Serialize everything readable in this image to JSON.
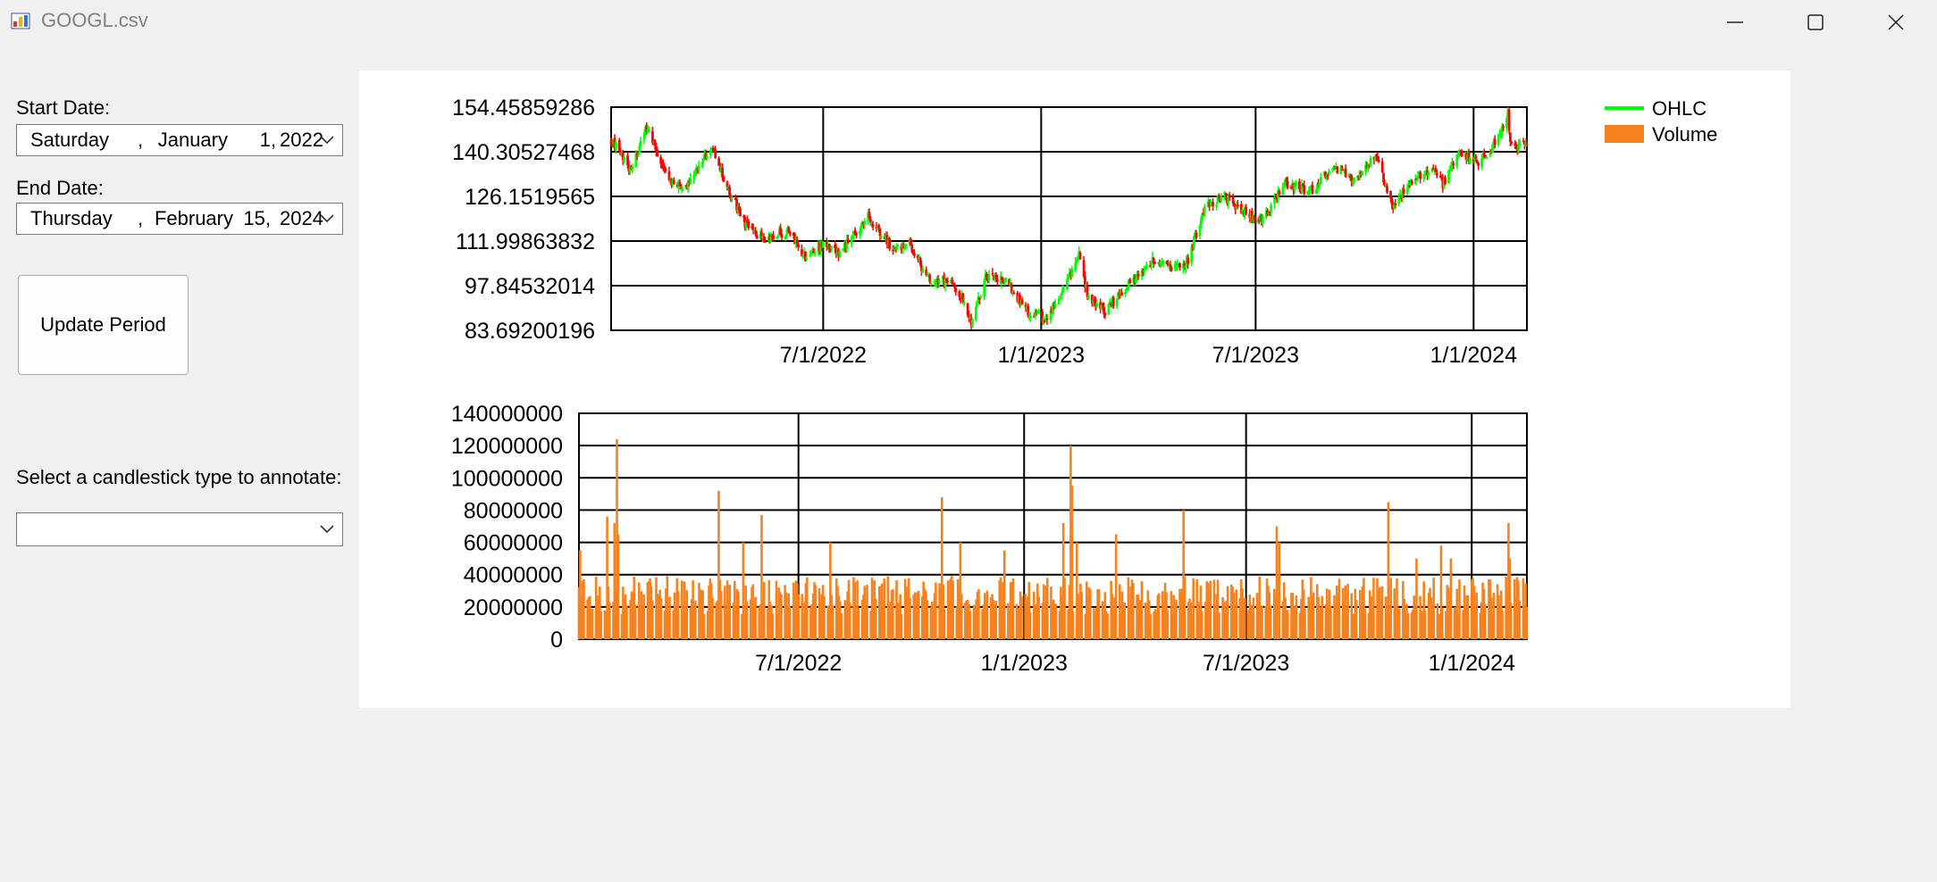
{
  "window": {
    "title": "GOOGL.csv",
    "icons": {
      "app": "chart-app-icon",
      "minimize": "minimize-icon",
      "maximize": "maximize-icon",
      "close": "close-icon"
    }
  },
  "controls": {
    "start_label": "Start Date:",
    "start_date": {
      "weekday": "Saturday",
      "sep": ",",
      "month": "January",
      "day": "1,",
      "year": "2022"
    },
    "end_label": "End Date:",
    "end_date": {
      "weekday": "Thursday",
      "sep": ",",
      "month": "February",
      "day": "15,",
      "year": "2024"
    },
    "update_button": "Update Period",
    "annotate_label": "Select a candlestick type to annotate:",
    "annotate_value": ""
  },
  "chart_data": [
    {
      "type": "candlestick",
      "series": [
        {
          "name": "OHLC",
          "up_color": "#00ff00",
          "down_color": "#ff0000"
        }
      ],
      "y_ticks": [
        "154.45859286",
        "140.30527468",
        "126.1519565",
        "111.99863832",
        "97.84532014",
        "83.69200196"
      ],
      "ylim": [
        83.69200196,
        154.45859286
      ],
      "x_ticks": [
        "7/1/2022",
        "1/1/2023",
        "7/1/2023",
        "1/1/2024"
      ],
      "xlim": [
        "2022-01-03",
        "2024-02-15"
      ],
      "grid": true,
      "anchors": [
        [
          "2022-01-03",
          144.5
        ],
        [
          "2022-01-20",
          134
        ],
        [
          "2022-02-02",
          148
        ],
        [
          "2022-02-22",
          131
        ],
        [
          "2022-03-07",
          129
        ],
        [
          "2022-03-29",
          142.5
        ],
        [
          "2022-04-11",
          129
        ],
        [
          "2022-04-27",
          117
        ],
        [
          "2022-05-11",
          113
        ],
        [
          "2022-06-01",
          115
        ],
        [
          "2022-06-16",
          107
        ],
        [
          "2022-06-30",
          111
        ],
        [
          "2022-07-15",
          108
        ],
        [
          "2022-08-08",
          120
        ],
        [
          "2022-08-29",
          109
        ],
        [
          "2022-09-12",
          111
        ],
        [
          "2022-09-30",
          98
        ],
        [
          "2022-10-17",
          100
        ],
        [
          "2022-10-27",
          94
        ],
        [
          "2022-11-03",
          85
        ],
        [
          "2022-11-15",
          101
        ],
        [
          "2022-12-01",
          100
        ],
        [
          "2022-12-20",
          90
        ],
        [
          "2023-01-05",
          87
        ],
        [
          "2023-01-20",
          98
        ],
        [
          "2023-02-02",
          108
        ],
        [
          "2023-02-09",
          95
        ],
        [
          "2023-02-24",
          90
        ],
        [
          "2023-03-15",
          98
        ],
        [
          "2023-04-05",
          106
        ],
        [
          "2023-04-25",
          104
        ],
        [
          "2023-05-05",
          106
        ],
        [
          "2023-05-19",
          123
        ],
        [
          "2023-06-05",
          126
        ],
        [
          "2023-06-22",
          121
        ],
        [
          "2023-07-07",
          119
        ],
        [
          "2023-07-26",
          130
        ],
        [
          "2023-08-18",
          128
        ],
        [
          "2023-09-05",
          136
        ],
        [
          "2023-09-20",
          131
        ],
        [
          "2023-10-11",
          139
        ],
        [
          "2023-10-25",
          122
        ],
        [
          "2023-11-08",
          131
        ],
        [
          "2023-11-28",
          135
        ],
        [
          "2023-12-06",
          130
        ],
        [
          "2023-12-20",
          140
        ],
        [
          "2024-01-04",
          137
        ],
        [
          "2024-01-19",
          143
        ],
        [
          "2024-01-30",
          152
        ],
        [
          "2024-02-01",
          142
        ],
        [
          "2024-02-15",
          142
        ]
      ]
    },
    {
      "type": "bar",
      "series": [
        {
          "name": "Volume",
          "color": "#f5821f"
        }
      ],
      "y_ticks": [
        "140000000",
        "120000000",
        "100000000",
        "80000000",
        "60000000",
        "40000000",
        "20000000",
        "0"
      ],
      "ylim": [
        0,
        140000000
      ],
      "x_ticks": [
        "7/1/2022",
        "1/1/2023",
        "7/1/2023",
        "1/1/2024"
      ],
      "xlim": [
        "2022-01-03",
        "2024-02-15"
      ],
      "grid": true,
      "base_volume": 28000000,
      "spikes": [
        [
          "2022-01-04",
          55000000
        ],
        [
          "2022-01-26",
          76000000
        ],
        [
          "2022-02-01",
          72000000
        ],
        [
          "2022-02-03",
          124000000
        ],
        [
          "2022-02-04",
          65000000
        ],
        [
          "2022-04-27",
          92000000
        ],
        [
          "2022-05-17",
          60000000
        ],
        [
          "2022-06-01",
          77000000
        ],
        [
          "2022-07-27",
          60000000
        ],
        [
          "2022-10-26",
          88000000
        ],
        [
          "2022-11-10",
          60000000
        ],
        [
          "2022-12-16",
          55000000
        ],
        [
          "2023-02-02",
          72000000
        ],
        [
          "2023-02-08",
          120000000
        ],
        [
          "2023-02-09",
          95000000
        ],
        [
          "2023-02-13",
          60000000
        ],
        [
          "2023-03-17",
          65000000
        ],
        [
          "2023-05-11",
          80000000
        ],
        [
          "2023-07-26",
          70000000
        ],
        [
          "2023-07-28",
          60000000
        ],
        [
          "2023-10-25",
          85000000
        ],
        [
          "2023-11-17",
          50000000
        ],
        [
          "2023-12-07",
          58000000
        ],
        [
          "2023-12-15",
          50000000
        ],
        [
          "2024-01-31",
          72000000
        ],
        [
          "2024-02-01",
          50000000
        ]
      ]
    }
  ],
  "legend": {
    "ohlc_label": "OHLC",
    "volume_label": "Volume",
    "position": "top-right"
  }
}
